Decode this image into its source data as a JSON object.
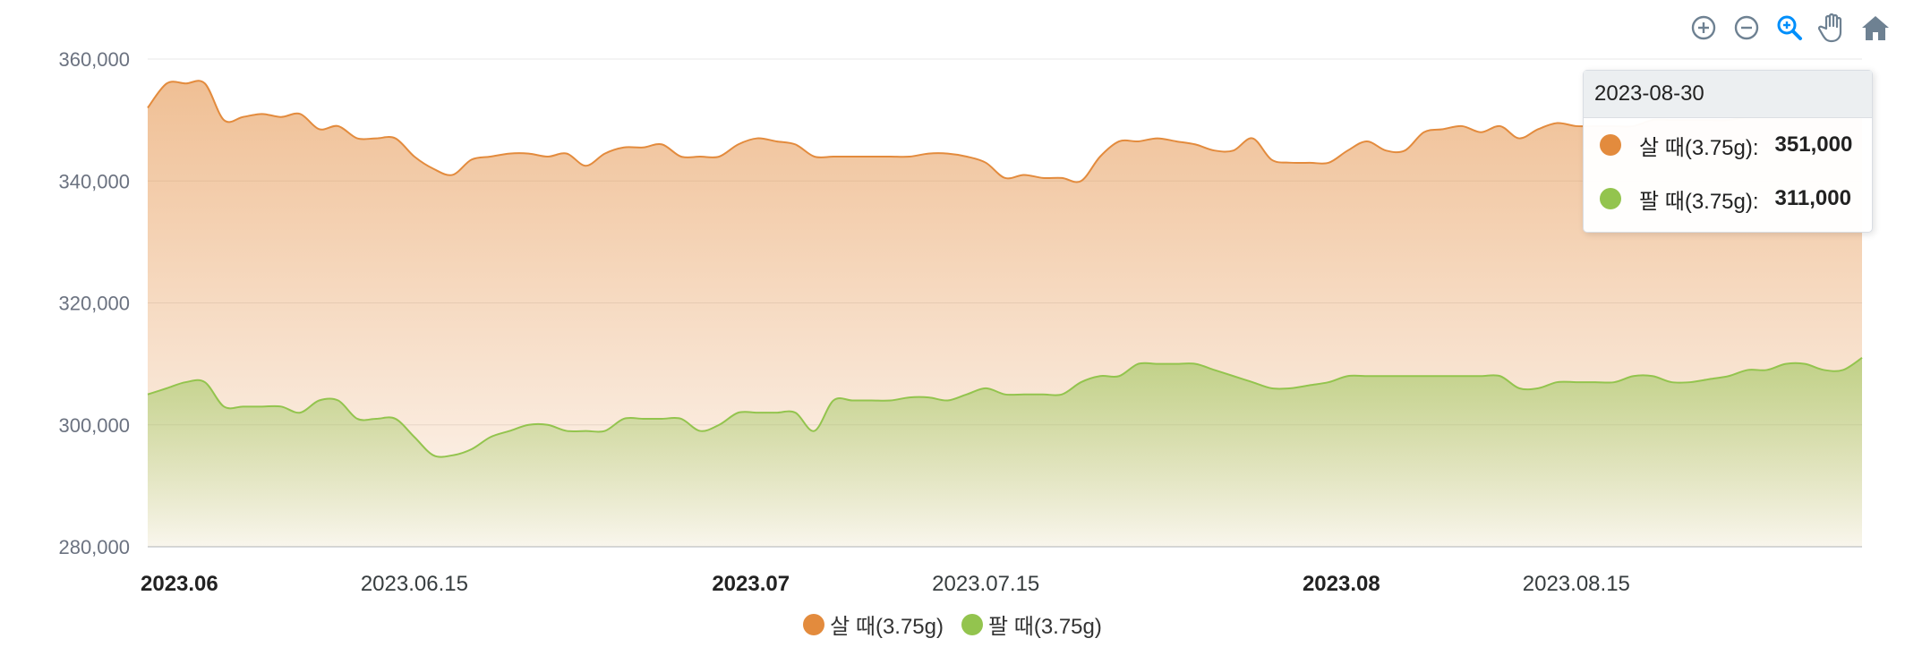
{
  "toolbar": {
    "icons": [
      "zoom-in-icon",
      "zoom-out-icon",
      "zoom-select-icon",
      "pan-hand-icon",
      "home-reset-icon"
    ]
  },
  "tooltip": {
    "date": "2023-08-30",
    "rows": [
      {
        "label": "살 때(3.75g):",
        "value": "351,000",
        "color": "#e38b3d"
      },
      {
        "label": "팔 때(3.75g):",
        "value": "311,000",
        "color": "#93c44e"
      }
    ]
  },
  "legend": [
    {
      "label": "살 때(3.75g)",
      "color": "#e38b3d"
    },
    {
      "label": "팔 때(3.75g)",
      "color": "#93c44e"
    }
  ],
  "chart_data": {
    "type": "area",
    "title": "",
    "xlabel": "",
    "ylabel": "",
    "ylim": [
      280000,
      360000
    ],
    "yticks": [
      "280,000",
      "300,000",
      "320,000",
      "340,000",
      "360,000"
    ],
    "xlim": [
      "2023-06-01",
      "2023-08-30"
    ],
    "xticks": [
      {
        "date": "2023-06-01",
        "label": "2023.06",
        "major": true
      },
      {
        "date": "2023-06-15",
        "label": "2023.06.15",
        "major": false
      },
      {
        "date": "2023-07-01",
        "label": "2023.07",
        "major": true
      },
      {
        "date": "2023-07-15",
        "label": "2023.07.15",
        "major": false
      },
      {
        "date": "2023-08-01",
        "label": "2023.08",
        "major": true
      },
      {
        "date": "2023-08-15",
        "label": "2023.08.15",
        "major": false
      }
    ],
    "grid": true,
    "legend_position": "bottom",
    "series": [
      {
        "name": "살 때(3.75g)",
        "color": "#e38b3d",
        "points": [
          [
            "2023-06-01",
            352000
          ],
          [
            "2023-06-02",
            356000
          ],
          [
            "2023-06-03",
            356000
          ],
          [
            "2023-06-04",
            356000
          ],
          [
            "2023-06-05",
            350000
          ],
          [
            "2023-06-06",
            350500
          ],
          [
            "2023-06-07",
            351000
          ],
          [
            "2023-06-08",
            350500
          ],
          [
            "2023-06-09",
            351000
          ],
          [
            "2023-06-10",
            348500
          ],
          [
            "2023-06-11",
            349000
          ],
          [
            "2023-06-12",
            347000
          ],
          [
            "2023-06-13",
            347000
          ],
          [
            "2023-06-14",
            347000
          ],
          [
            "2023-06-15",
            344000
          ],
          [
            "2023-06-16",
            342000
          ],
          [
            "2023-06-17",
            341000
          ],
          [
            "2023-06-18",
            343500
          ],
          [
            "2023-06-19",
            344000
          ],
          [
            "2023-06-20",
            344500
          ],
          [
            "2023-06-21",
            344500
          ],
          [
            "2023-06-22",
            344000
          ],
          [
            "2023-06-23",
            344500
          ],
          [
            "2023-06-24",
            342500
          ],
          [
            "2023-06-25",
            344500
          ],
          [
            "2023-06-26",
            345500
          ],
          [
            "2023-06-27",
            345500
          ],
          [
            "2023-06-28",
            346000
          ],
          [
            "2023-06-29",
            344000
          ],
          [
            "2023-06-30",
            344000
          ],
          [
            "2023-07-01",
            344000
          ],
          [
            "2023-07-02",
            346000
          ],
          [
            "2023-07-03",
            347000
          ],
          [
            "2023-07-04",
            346500
          ],
          [
            "2023-07-05",
            346000
          ],
          [
            "2023-07-06",
            344000
          ],
          [
            "2023-07-07",
            344000
          ],
          [
            "2023-07-08",
            344000
          ],
          [
            "2023-07-09",
            344000
          ],
          [
            "2023-07-10",
            344000
          ],
          [
            "2023-07-11",
            344000
          ],
          [
            "2023-07-12",
            344500
          ],
          [
            "2023-07-13",
            344500
          ],
          [
            "2023-07-14",
            344000
          ],
          [
            "2023-07-15",
            343000
          ],
          [
            "2023-07-16",
            340500
          ],
          [
            "2023-07-17",
            341000
          ],
          [
            "2023-07-18",
            340500
          ],
          [
            "2023-07-19",
            340500
          ],
          [
            "2023-07-20",
            340000
          ],
          [
            "2023-07-21",
            344000
          ],
          [
            "2023-07-22",
            346500
          ],
          [
            "2023-07-23",
            346500
          ],
          [
            "2023-07-24",
            347000
          ],
          [
            "2023-07-25",
            346500
          ],
          [
            "2023-07-26",
            346000
          ],
          [
            "2023-07-27",
            345000
          ],
          [
            "2023-07-28",
            345000
          ],
          [
            "2023-07-29",
            347000
          ],
          [
            "2023-07-30",
            343500
          ],
          [
            "2023-07-31",
            343000
          ],
          [
            "2023-08-01",
            343000
          ],
          [
            "2023-08-02",
            343000
          ],
          [
            "2023-08-03",
            345000
          ],
          [
            "2023-08-04",
            346500
          ],
          [
            "2023-08-05",
            345000
          ],
          [
            "2023-08-06",
            345000
          ],
          [
            "2023-08-07",
            348000
          ],
          [
            "2023-08-08",
            348500
          ],
          [
            "2023-08-09",
            349000
          ],
          [
            "2023-08-10",
            348000
          ],
          [
            "2023-08-11",
            349000
          ],
          [
            "2023-08-12",
            347000
          ],
          [
            "2023-08-13",
            348500
          ],
          [
            "2023-08-14",
            349500
          ],
          [
            "2023-08-15",
            349000
          ],
          [
            "2023-08-16",
            349000
          ],
          [
            "2023-08-17",
            349000
          ],
          [
            "2023-08-18",
            349000
          ],
          [
            "2023-08-19",
            350000
          ],
          [
            "2023-08-20",
            350000
          ],
          [
            "2023-08-21",
            350000
          ],
          [
            "2023-08-22",
            350000
          ],
          [
            "2023-08-23",
            350000
          ],
          [
            "2023-08-24",
            350500
          ],
          [
            "2023-08-25",
            350500
          ],
          [
            "2023-08-26",
            350500
          ],
          [
            "2023-08-27",
            350500
          ],
          [
            "2023-08-28",
            350500
          ],
          [
            "2023-08-29",
            351000
          ],
          [
            "2023-08-30",
            351000
          ]
        ]
      },
      {
        "name": "팔 때(3.75g)",
        "color": "#93c44e",
        "points": [
          [
            "2023-06-01",
            305000
          ],
          [
            "2023-06-02",
            306000
          ],
          [
            "2023-06-03",
            307000
          ],
          [
            "2023-06-04",
            307000
          ],
          [
            "2023-06-05",
            303000
          ],
          [
            "2023-06-06",
            303000
          ],
          [
            "2023-06-07",
            303000
          ],
          [
            "2023-06-08",
            303000
          ],
          [
            "2023-06-09",
            302000
          ],
          [
            "2023-06-10",
            304000
          ],
          [
            "2023-06-11",
            304000
          ],
          [
            "2023-06-12",
            301000
          ],
          [
            "2023-06-13",
            301000
          ],
          [
            "2023-06-14",
            301000
          ],
          [
            "2023-06-15",
            298000
          ],
          [
            "2023-06-16",
            295000
          ],
          [
            "2023-06-17",
            295000
          ],
          [
            "2023-06-18",
            296000
          ],
          [
            "2023-06-19",
            298000
          ],
          [
            "2023-06-20",
            299000
          ],
          [
            "2023-06-21",
            300000
          ],
          [
            "2023-06-22",
            300000
          ],
          [
            "2023-06-23",
            299000
          ],
          [
            "2023-06-24",
            299000
          ],
          [
            "2023-06-25",
            299000
          ],
          [
            "2023-06-26",
            301000
          ],
          [
            "2023-06-27",
            301000
          ],
          [
            "2023-06-28",
            301000
          ],
          [
            "2023-06-29",
            301000
          ],
          [
            "2023-06-30",
            299000
          ],
          [
            "2023-07-01",
            300000
          ],
          [
            "2023-07-02",
            302000
          ],
          [
            "2023-07-03",
            302000
          ],
          [
            "2023-07-04",
            302000
          ],
          [
            "2023-07-05",
            302000
          ],
          [
            "2023-07-06",
            299000
          ],
          [
            "2023-07-07",
            304000
          ],
          [
            "2023-07-08",
            304000
          ],
          [
            "2023-07-09",
            304000
          ],
          [
            "2023-07-10",
            304000
          ],
          [
            "2023-07-11",
            304500
          ],
          [
            "2023-07-12",
            304500
          ],
          [
            "2023-07-13",
            304000
          ],
          [
            "2023-07-14",
            305000
          ],
          [
            "2023-07-15",
            306000
          ],
          [
            "2023-07-16",
            305000
          ],
          [
            "2023-07-17",
            305000
          ],
          [
            "2023-07-18",
            305000
          ],
          [
            "2023-07-19",
            305000
          ],
          [
            "2023-07-20",
            307000
          ],
          [
            "2023-07-21",
            308000
          ],
          [
            "2023-07-22",
            308000
          ],
          [
            "2023-07-23",
            310000
          ],
          [
            "2023-07-24",
            310000
          ],
          [
            "2023-07-25",
            310000
          ],
          [
            "2023-07-26",
            310000
          ],
          [
            "2023-07-27",
            309000
          ],
          [
            "2023-07-28",
            308000
          ],
          [
            "2023-07-29",
            307000
          ],
          [
            "2023-07-30",
            306000
          ],
          [
            "2023-07-31",
            306000
          ],
          [
            "2023-08-01",
            306500
          ],
          [
            "2023-08-02",
            307000
          ],
          [
            "2023-08-03",
            308000
          ],
          [
            "2023-08-04",
            308000
          ],
          [
            "2023-08-05",
            308000
          ],
          [
            "2023-08-06",
            308000
          ],
          [
            "2023-08-07",
            308000
          ],
          [
            "2023-08-08",
            308000
          ],
          [
            "2023-08-09",
            308000
          ],
          [
            "2023-08-10",
            308000
          ],
          [
            "2023-08-11",
            308000
          ],
          [
            "2023-08-12",
            306000
          ],
          [
            "2023-08-13",
            306000
          ],
          [
            "2023-08-14",
            307000
          ],
          [
            "2023-08-15",
            307000
          ],
          [
            "2023-08-16",
            307000
          ],
          [
            "2023-08-17",
            307000
          ],
          [
            "2023-08-18",
            308000
          ],
          [
            "2023-08-19",
            308000
          ],
          [
            "2023-08-20",
            307000
          ],
          [
            "2023-08-21",
            307000
          ],
          [
            "2023-08-22",
            307500
          ],
          [
            "2023-08-23",
            308000
          ],
          [
            "2023-08-24",
            309000
          ],
          [
            "2023-08-25",
            309000
          ],
          [
            "2023-08-26",
            310000
          ],
          [
            "2023-08-27",
            310000
          ],
          [
            "2023-08-28",
            309000
          ],
          [
            "2023-08-29",
            309000
          ],
          [
            "2023-08-30",
            311000
          ]
        ]
      }
    ]
  }
}
